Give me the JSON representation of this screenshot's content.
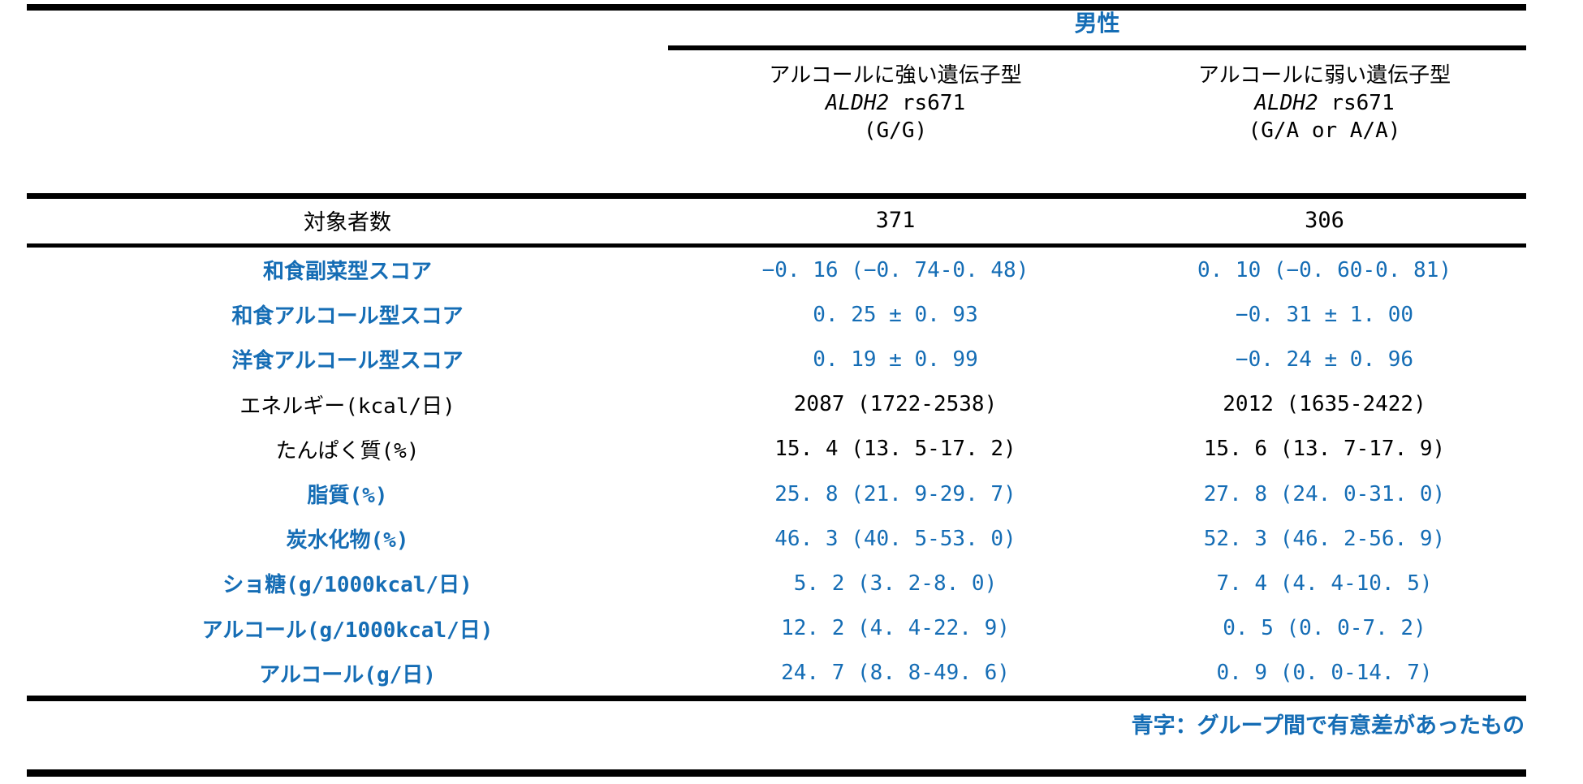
{
  "colors": {
    "accent_blue": "#156db5",
    "text_black": "#000000",
    "background": "#ffffff"
  },
  "header": {
    "group_title": "男性",
    "columns": [
      {
        "line1": "アルコールに強い遺伝子型",
        "gene_italic": "ALDH2",
        "gene_rest": " rs671",
        "genotype": "(G/G)"
      },
      {
        "line1": "アルコールに弱い遺伝子型",
        "gene_italic": "ALDH2",
        "gene_rest": " rs671",
        "genotype": "(G/A or A/A)"
      }
    ]
  },
  "table": {
    "subjects": {
      "label": "対象者数",
      "values": [
        "371",
        "306"
      ]
    },
    "rows": [
      {
        "label": "和食副菜型スコア",
        "values": [
          "−0. 16 (−0. 74-0. 48)",
          "0. 10 (−0. 60-0. 81)"
        ],
        "highlight": true
      },
      {
        "label": "和食アルコール型スコア",
        "values": [
          "0. 25 ± 0. 93",
          "−0. 31 ± 1. 00"
        ],
        "highlight": true
      },
      {
        "label": "洋食アルコール型スコア",
        "values": [
          "0. 19 ± 0. 99",
          "−0. 24 ± 0. 96"
        ],
        "highlight": true
      },
      {
        "label": "エネルギー(kcal/日)",
        "values": [
          "2087 (1722-2538)",
          "2012 (1635-2422)"
        ],
        "highlight": false
      },
      {
        "label": "たんぱく質(%)",
        "values": [
          "15. 4 (13. 5-17. 2)",
          "15. 6 (13. 7-17. 9)"
        ],
        "highlight": false
      },
      {
        "label": "脂質(%)",
        "values": [
          "25. 8 (21. 9-29. 7)",
          "27. 8 (24. 0-31. 0)"
        ],
        "highlight": true
      },
      {
        "label": "炭水化物(%)",
        "values": [
          "46. 3 (40. 5-53. 0)",
          "52. 3 (46. 2-56. 9)"
        ],
        "highlight": true
      },
      {
        "label": "ショ糖(g/1000kcal/日)",
        "values": [
          "5. 2 (3. 2-8. 0)",
          "7. 4 (4. 4-10. 5)"
        ],
        "highlight": true
      },
      {
        "label": "アルコール(g/1000kcal/日)",
        "values": [
          "12. 2 (4. 4-22. 9)",
          "0. 5 (0. 0-7. 2)"
        ],
        "highlight": true
      },
      {
        "label": "アルコール(g/日)",
        "values": [
          "24. 7 (8. 8-49. 6)",
          "0. 9 (0. 0-14. 7)"
        ],
        "highlight": true
      }
    ]
  },
  "footnote": "青字：グループ間で有意差があったもの"
}
